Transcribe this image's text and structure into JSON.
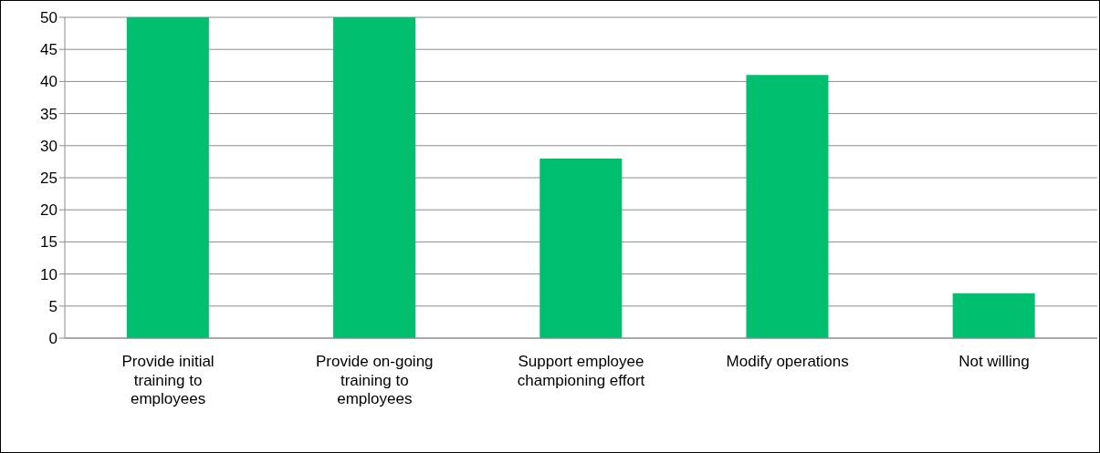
{
  "chart_data": {
    "type": "bar",
    "categories": [
      "Provide initial training to employees",
      "Provide on-going training to employees",
      "Support employee championing effort",
      "Modify operations",
      "Not willing"
    ],
    "values": [
      50,
      50,
      28,
      41,
      7
    ],
    "color": "#00c06f",
    "ylim": [
      0,
      50
    ],
    "yticks": [
      0,
      5,
      10,
      15,
      20,
      25,
      30,
      35,
      40,
      45,
      50
    ],
    "grid": "y"
  }
}
